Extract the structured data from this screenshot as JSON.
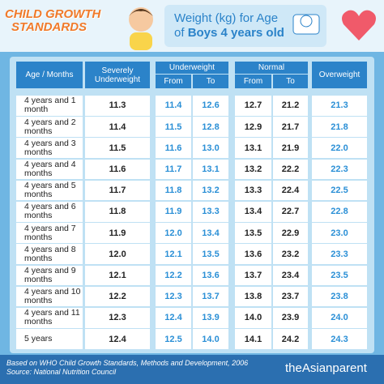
{
  "logo": {
    "line1": "CHILD GROWTH",
    "line2": "STANDARDS"
  },
  "header": {
    "title_line1": "Weight (kg) for Age",
    "title_of": "of",
    "title_bold": "Boys 4 years old"
  },
  "table": {
    "headers": {
      "age": "Age / Months",
      "severe": "Severely Underweight",
      "under": "Underweight",
      "under_from": "From",
      "under_to": "To",
      "normal": "Normal",
      "normal_from": "From",
      "normal_to": "To",
      "over": "Overweight"
    },
    "rows": [
      [
        "4 years and 1 month",
        "11.3",
        "11.4",
        "12.6",
        "12.7",
        "21.2",
        "21.3"
      ],
      [
        "4 years and 2 months",
        "11.4",
        "11.5",
        "12.8",
        "12.9",
        "21.7",
        "21.8"
      ],
      [
        "4 years and 3 months",
        "11.5",
        "11.6",
        "13.0",
        "13.1",
        "21.9",
        "22.0"
      ],
      [
        "4 years and 4 months",
        "11.6",
        "11.7",
        "13.1",
        "13.2",
        "22.2",
        "22.3"
      ],
      [
        "4 years and 5 months",
        "11.7",
        "11.8",
        "13.2",
        "13.3",
        "22.4",
        "22.5"
      ],
      [
        "4 years and 6 months",
        "11.8",
        "11.9",
        "13.3",
        "13.4",
        "22.7",
        "22.8"
      ],
      [
        "4 years and 7 months",
        "11.9",
        "12.0",
        "13.4",
        "13.5",
        "22.9",
        "23.0"
      ],
      [
        "4 years and 8 months",
        "12.0",
        "12.1",
        "13.5",
        "13.6",
        "23.2",
        "23.3"
      ],
      [
        "4 years and 9 months",
        "12.1",
        "12.2",
        "13.6",
        "13.7",
        "23.4",
        "23.5"
      ],
      [
        "4 years and 10 months",
        "12.2",
        "12.3",
        "13.7",
        "13.8",
        "23.7",
        "23.8"
      ],
      [
        "4 years and 11 months",
        "12.3",
        "12.4",
        "13.9",
        "14.0",
        "23.9",
        "24.0"
      ],
      [
        "5 years",
        "12.4",
        "12.5",
        "14.0",
        "14.1",
        "24.2",
        "24.3"
      ]
    ]
  },
  "footer": {
    "line1": "Based on WHO Child Growth Standards, Methods and Development, 2006",
    "line2": "Source: National Nutrition Council",
    "brand": "theAsianparent"
  }
}
